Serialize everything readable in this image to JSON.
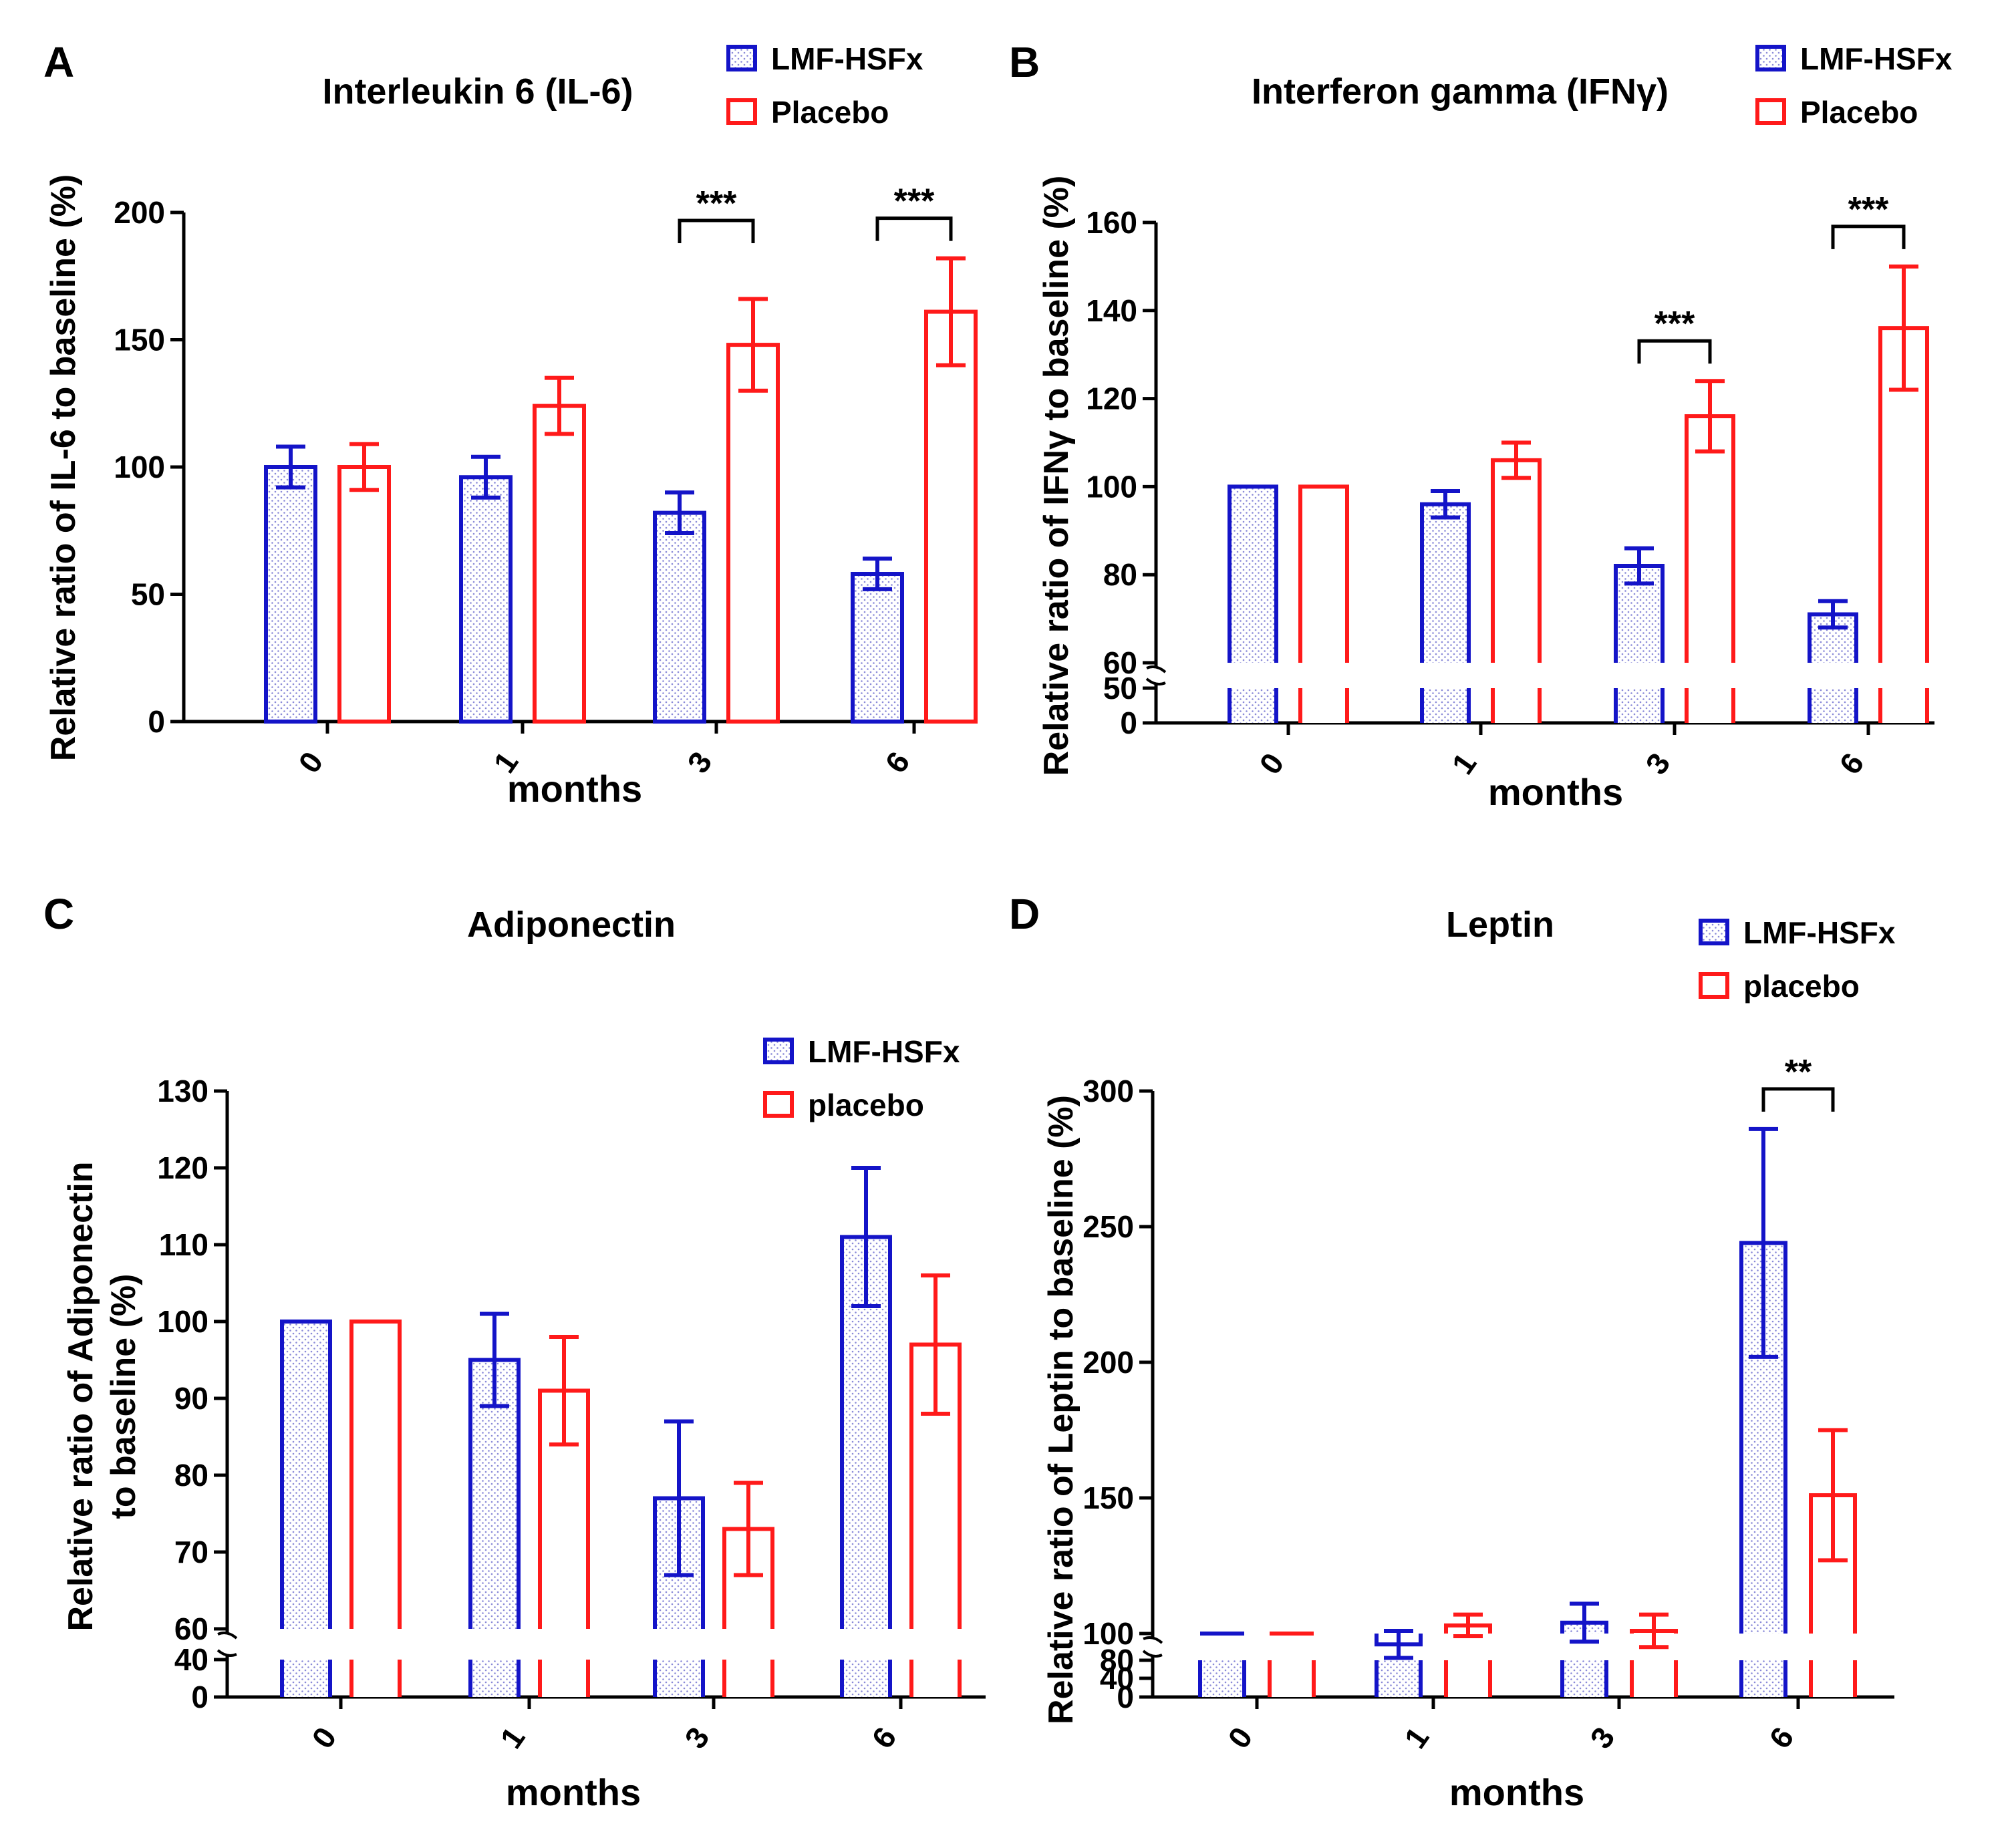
{
  "colors": {
    "lmf": "#1414c8",
    "placebo": "#ff1a1a",
    "dot": "#8a8ad8",
    "axis": "#000000"
  },
  "chart_data": [
    {
      "id": "A",
      "panel_label": "A",
      "type": "bar",
      "title": "Interleukin 6 (IL-6)",
      "xlabel": "months",
      "ylabel": [
        "Relative ratio of IL-6 to baseline (%)"
      ],
      "categories": [
        "0",
        "1",
        "3",
        "6"
      ],
      "ylim": [
        0,
        200
      ],
      "yticks": [
        0,
        50,
        100,
        150,
        200
      ],
      "axis_break": null,
      "legend": {
        "position": "top-right",
        "entries": [
          "LMF-HSFx",
          "Placebo"
        ]
      },
      "series": [
        {
          "name": "LMF-HSFx",
          "values": [
            100,
            96,
            82,
            58
          ],
          "errors": [
            8,
            8,
            8,
            6
          ]
        },
        {
          "name": "Placebo",
          "values": [
            100,
            124,
            148,
            161
          ],
          "errors": [
            9,
            11,
            18,
            21
          ]
        }
      ],
      "significance": [
        {
          "category": "3",
          "label": "***"
        },
        {
          "category": "6",
          "label": "***"
        }
      ]
    },
    {
      "id": "B",
      "panel_label": "B",
      "type": "bar",
      "title": "Interferon gamma (IFNγ)",
      "xlabel": "months",
      "ylabel": [
        "Relative ratio of IFNγ to baseline (%)"
      ],
      "categories": [
        "0",
        "1",
        "3",
        "6"
      ],
      "ylim": [
        0,
        160
      ],
      "yticks": [
        0,
        50,
        60,
        80,
        100,
        120,
        140,
        160
      ],
      "axis_break": {
        "lower": [
          0,
          50
        ],
        "upper": [
          60,
          160
        ]
      },
      "legend": {
        "position": "top-right",
        "entries": [
          "LMF-HSFx",
          "Placebo"
        ]
      },
      "series": [
        {
          "name": "LMF-HSFx",
          "values": [
            100,
            96,
            82,
            71
          ],
          "errors": [
            0,
            3,
            4,
            3
          ]
        },
        {
          "name": "Placebo",
          "values": [
            100,
            106,
            116,
            136
          ],
          "errors": [
            0,
            4,
            8,
            14
          ]
        }
      ],
      "significance": [
        {
          "category": "3",
          "label": "***"
        },
        {
          "category": "6",
          "label": "***"
        }
      ]
    },
    {
      "id": "C",
      "panel_label": "C",
      "type": "bar",
      "title": "Adiponectin",
      "xlabel": "months",
      "ylabel": [
        "Relative ratio of Adiponectin",
        "to baseline (%)"
      ],
      "categories": [
        "0",
        "1",
        "3",
        "6"
      ],
      "ylim": [
        0,
        130
      ],
      "yticks": [
        0,
        40,
        60,
        70,
        80,
        90,
        100,
        110,
        120,
        130
      ],
      "axis_break": {
        "lower": [
          0,
          40
        ],
        "upper": [
          60,
          130
        ]
      },
      "legend": {
        "position": "top-right",
        "entries": [
          "LMF-HSFx",
          "placebo"
        ]
      },
      "series": [
        {
          "name": "LMF-HSFx",
          "values": [
            100,
            95,
            77,
            111
          ],
          "errors": [
            0,
            6,
            10,
            9
          ]
        },
        {
          "name": "placebo",
          "values": [
            100,
            91,
            73,
            97
          ],
          "errors": [
            0,
            7,
            6,
            9
          ]
        }
      ],
      "significance": []
    },
    {
      "id": "D",
      "panel_label": "D",
      "type": "bar",
      "title": "Leptin",
      "xlabel": "months",
      "ylabel": [
        "Relative ratio of Leptin to baseline (%)"
      ],
      "categories": [
        "0",
        "1",
        "3",
        "6"
      ],
      "ylim": [
        0,
        300
      ],
      "yticks": [
        0,
        40,
        80,
        100,
        150,
        200,
        250,
        300
      ],
      "axis_break": {
        "lower": [
          0,
          80
        ],
        "upper": [
          80,
          300
        ]
      },
      "legend": {
        "position": "top-right",
        "entries": [
          "LMF-HSFx",
          "placebo"
        ]
      },
      "series": [
        {
          "name": "LMF-HSFx",
          "values": [
            100,
            96,
            104,
            244
          ],
          "errors": [
            0,
            5,
            7,
            42
          ]
        },
        {
          "name": "placebo",
          "values": [
            100,
            103,
            101,
            151
          ],
          "errors": [
            0,
            4,
            6,
            24
          ]
        }
      ],
      "significance": [
        {
          "category": "6",
          "label": "**"
        }
      ]
    }
  ]
}
